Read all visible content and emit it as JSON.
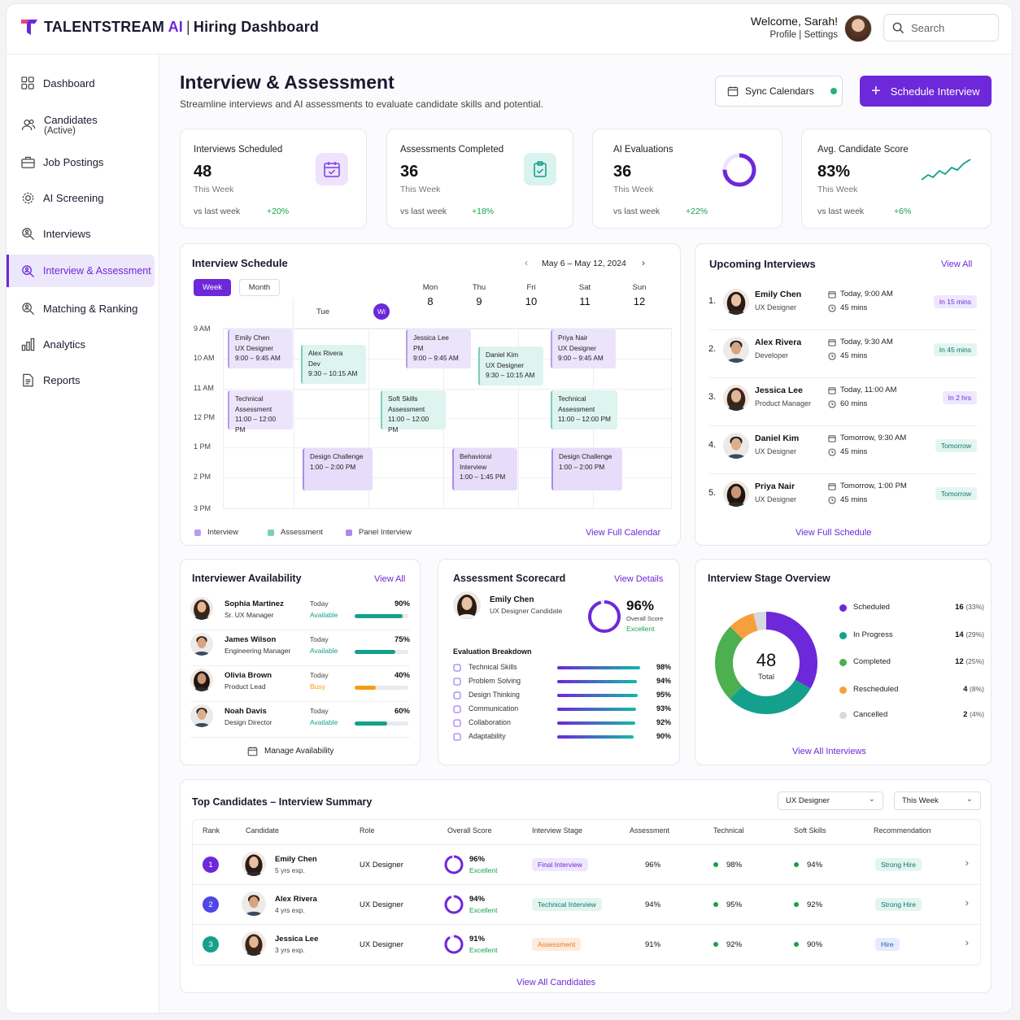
{
  "brand": {
    "name_a": "TALENTSTREAM",
    "name_b": " AI",
    "page": "Hiring Dashboard"
  },
  "user": {
    "welcome": "Welcome, Sarah!",
    "links": "Profile | Settings"
  },
  "search": {
    "placeholder": "Search"
  },
  "sidebar": [
    {
      "label": "Dashboard",
      "icon": "grid-icon"
    },
    {
      "label": "Candidates",
      "sub": "(Active)",
      "icon": "users-icon"
    },
    {
      "label": "Job Postings",
      "icon": "briefcase-icon"
    },
    {
      "label": "AI Screening",
      "icon": "gear-icon"
    },
    {
      "label": "Interviews",
      "icon": "search-person-icon"
    },
    {
      "label": "Interview & Assessment",
      "icon": "search-person-icon",
      "active": true
    },
    {
      "label": "Matching & Ranking",
      "icon": "search-person-icon"
    },
    {
      "label": "Analytics",
      "icon": "bar-chart-icon"
    },
    {
      "label": "Reports",
      "icon": "document-icon"
    }
  ],
  "page": {
    "title": "Interview & Assessment",
    "subtitle": "Streamline interviews and AI assessments to evaluate candidate skills and potential.",
    "sync": "Sync Calendars",
    "schedule": "Schedule Interview"
  },
  "stats": [
    {
      "label": "Interviews Scheduled",
      "value": "48",
      "sub": "This Week",
      "vs": "vs last week",
      "change": "+20%"
    },
    {
      "label": "Assessments Completed",
      "value": "36",
      "sub": "This Week",
      "vs": "vs last week",
      "change": "+18%"
    },
    {
      "label": "AI Evaluations",
      "value": "36",
      "sub": "This Week",
      "vs": "vs last week",
      "change": "+22%"
    },
    {
      "label": "Avg. Candidate Score",
      "value": "83%",
      "sub": "This Week",
      "vs": "vs last week",
      "change": "+6%"
    }
  ],
  "schedule": {
    "title": "Interview Schedule",
    "range": "May 6 – May 12, 2024",
    "week": "Week",
    "month": "Month",
    "days": [
      {
        "name": "Tue",
        "num": "",
        "badge": "Wi"
      },
      {
        "name": "Mon",
        "num": "8"
      },
      {
        "name": "Thu",
        "num": "9"
      },
      {
        "name": "Fri",
        "num": "10"
      },
      {
        "name": "Sat",
        "num": "11"
      },
      {
        "name": "Sun",
        "num": "12"
      }
    ],
    "hours": [
      "9 AM",
      "10 AM",
      "11 AM",
      "12 PM",
      "1 PM",
      "2 PM",
      "3 PM"
    ],
    "events": [
      {
        "l1": "Emily Chen",
        "l2": "UX Designer",
        "l3": "9:00 – 9:45 AM",
        "kind": "int"
      },
      {
        "l1": "Alex Rivera",
        "l2": "Dev",
        "l3": "9:30 – 10:15 AM",
        "kind": "ass"
      },
      {
        "l1": "Jessica Lee",
        "l2": "PM",
        "l3": "9:00 – 9:45 AM",
        "kind": "int"
      },
      {
        "l1": "Daniel Kim",
        "l2": "UX Designer",
        "l3": "9:30 – 10:15 AM",
        "kind": "ass"
      },
      {
        "l1": "Priya Nair",
        "l2": "UX Designer",
        "l3": "9:00 – 9:45 AM",
        "kind": "int"
      },
      {
        "l1": "Technical",
        "l2": "Assessment",
        "l3": "11:00 – 12:00 PM",
        "kind": "int"
      },
      {
        "l1": "Soft Skills",
        "l2": "Assessment",
        "l3": "11:00 – 12:00 PM",
        "kind": "ass"
      },
      {
        "l1": "Technical",
        "l2": "Assessment",
        "l3": "11:00 – 12:00 PM",
        "kind": "ass"
      },
      {
        "l1": "Design Challenge",
        "l2": "1:00 – 2:00 PM",
        "l3": "",
        "kind": "pan"
      },
      {
        "l1": "Behavioral",
        "l2": "Interview",
        "l3": "1:00 – 1:45 PM",
        "kind": "pan"
      },
      {
        "l1": "Design Challenge",
        "l2": "1:00 – 2:00 PM",
        "l3": "",
        "kind": "pan"
      }
    ],
    "legend": [
      "Interview",
      "Assessment",
      "Panel Interview"
    ],
    "link": "View Full Calendar"
  },
  "upcoming": {
    "title": "Upcoming Interviews",
    "link": "View All",
    "footer": "View Full Schedule",
    "items": [
      {
        "n": "1.",
        "name": "Emily Chen",
        "role": "UX Designer",
        "when": "Today, 9:00 AM",
        "dur": "45 mins",
        "badge": "In 15 mins"
      },
      {
        "n": "2.",
        "name": "Alex Rivera",
        "role": "Developer",
        "when": "Today, 9:30 AM",
        "dur": "45 mins",
        "badge": "In 45 mins"
      },
      {
        "n": "3.",
        "name": "Jessica Lee",
        "role": "Product Manager",
        "when": "Today, 11:00 AM",
        "dur": "60 mins",
        "badge": "In 2 hrs"
      },
      {
        "n": "4.",
        "name": "Daniel Kim",
        "role": "UX Designer",
        "when": "Tomorrow, 9:30 AM",
        "dur": "45 mins",
        "badge": "Tomorrow"
      },
      {
        "n": "5.",
        "name": "Priya Nair",
        "role": "UX Designer",
        "when": "Tomorrow, 1:00 PM",
        "dur": "45 mins",
        "badge": "Tomorrow"
      }
    ]
  },
  "availability": {
    "title": "Interviewer Availability",
    "link": "View All",
    "footer": "Manage Availability",
    "items": [
      {
        "name": "Sophia Martinez",
        "role": "Sr. UX Manager",
        "today": "Today",
        "status": "Available",
        "pct": "90%",
        "level": 0.9
      },
      {
        "name": "James Wilson",
        "role": "Engineering Manager",
        "today": "Today",
        "status": "Available",
        "pct": "75%",
        "level": 0.75
      },
      {
        "name": "Olivia Brown",
        "role": "Product Lead",
        "today": "Today",
        "status": "Busy",
        "pct": "40%",
        "level": 0.4
      },
      {
        "name": "Noah Davis",
        "role": "Design Director",
        "today": "Today",
        "status": "Available",
        "pct": "60%",
        "level": 0.6
      }
    ]
  },
  "scorecard": {
    "title": "Assessment Scorecard",
    "link": "View Details",
    "name": "Emily Chen",
    "role": "UX Designer Candidate",
    "score": "96%",
    "score_label": "Overall Score",
    "rating": "Excellent",
    "breakdown_title": "Evaluation Breakdown",
    "items": [
      {
        "label": "Technical Skills",
        "pct": "98%",
        "level": 0.98
      },
      {
        "label": "Problem Solving",
        "pct": "94%",
        "level": 0.94
      },
      {
        "label": "Design Thinking",
        "pct": "95%",
        "level": 0.95
      },
      {
        "label": "Communication",
        "pct": "93%",
        "level": 0.93
      },
      {
        "label": "Collaboration",
        "pct": "92%",
        "level": 0.92
      },
      {
        "label": "Adaptability",
        "pct": "90%",
        "level": 0.9
      }
    ]
  },
  "stages": {
    "title": "Interview Stage Overview",
    "total": "48",
    "total_label": "Total",
    "link": "View All Interviews",
    "items": [
      {
        "label": "Scheduled",
        "count": "16",
        "pct": "(33%)",
        "value": 16,
        "color": "#6d28d9"
      },
      {
        "label": "In Progress",
        "count": "14",
        "pct": "(29%)",
        "value": 14,
        "color": "#14a08c"
      },
      {
        "label": "Completed",
        "count": "12",
        "pct": "(25%)",
        "value": 12,
        "color": "#4caf50"
      },
      {
        "label": "Rescheduled",
        "count": "4",
        "pct": "(8%)",
        "value": 4,
        "color": "#f6a03d"
      },
      {
        "label": "Cancelled",
        "count": "2",
        "pct": "(4%)",
        "value": 2,
        "color": "#d8d8de"
      }
    ]
  },
  "top": {
    "title": "Top Candidates – Interview Summary",
    "filter1": "UX Designer",
    "filter2": "This Week",
    "footer": "View All Candidates",
    "headers": [
      "Rank",
      "Candidate",
      "Role",
      "Overall Score",
      "Interview Stage",
      "Assessment",
      "Technical",
      "Soft Skills",
      "Recommendation"
    ],
    "rows": [
      {
        "rank": "1",
        "name": "Emily Chen",
        "exp": "5 yrs exp.",
        "role": "UX Designer",
        "score": "96%",
        "rating": "Excellent",
        "stage": "Final Interview",
        "assess": "96%",
        "tech": "98%",
        "soft": "94%",
        "rec": "Strong Hire"
      },
      {
        "rank": "2",
        "name": "Alex Rivera",
        "exp": "4 yrs exp.",
        "role": "UX Designer",
        "score": "94%",
        "rating": "Excellent",
        "stage": "Technical Interview",
        "assess": "94%",
        "tech": "95%",
        "soft": "92%",
        "rec": "Strong Hire"
      },
      {
        "rank": "3",
        "name": "Jessica Lee",
        "exp": "3 yrs exp.",
        "role": "UX Designer",
        "score": "91%",
        "rating": "Excellent",
        "stage": "Assessment",
        "assess": "91%",
        "tech": "92%",
        "soft": "90%",
        "rec": "Hire"
      }
    ]
  }
}
